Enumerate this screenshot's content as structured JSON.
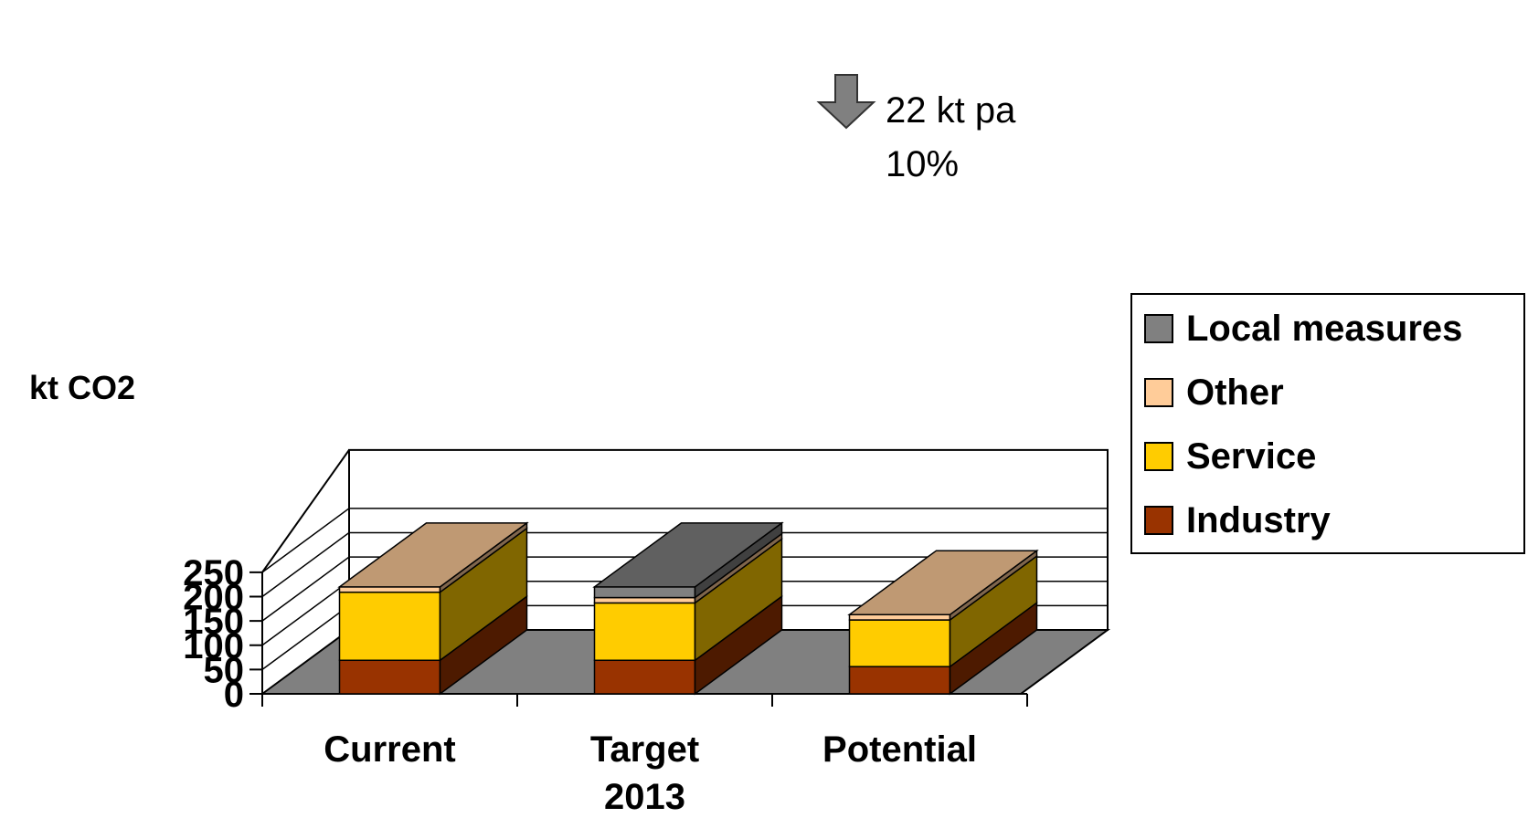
{
  "chart_data": {
    "type": "bar",
    "stacked": true,
    "three_d": true,
    "categories": [
      "Current",
      "Target\n2013",
      "Potential"
    ],
    "series": [
      {
        "name": "Industry",
        "values": [
          69,
          69,
          56
        ],
        "color": "#993300"
      },
      {
        "name": "Service",
        "values": [
          140,
          118,
          96
        ],
        "color": "#FFCC00"
      },
      {
        "name": "Other",
        "values": [
          11,
          11,
          11
        ],
        "color": "#FFCC99"
      },
      {
        "name": "Local measures",
        "values": [
          0,
          22,
          0
        ],
        "color": "#808080"
      }
    ],
    "ylabel": "kt CO2",
    "ylim": [
      0,
      250
    ],
    "yticks": [
      0,
      50,
      100,
      150,
      200,
      250
    ],
    "grid": true,
    "legend_position": "right",
    "legend_order": [
      "Local measures",
      "Other",
      "Service",
      "Industry"
    ],
    "annotation": {
      "lines": [
        "22 kt pa",
        "10%"
      ],
      "arrow": "down-arrow-icon"
    },
    "floor_color": "#808080"
  }
}
